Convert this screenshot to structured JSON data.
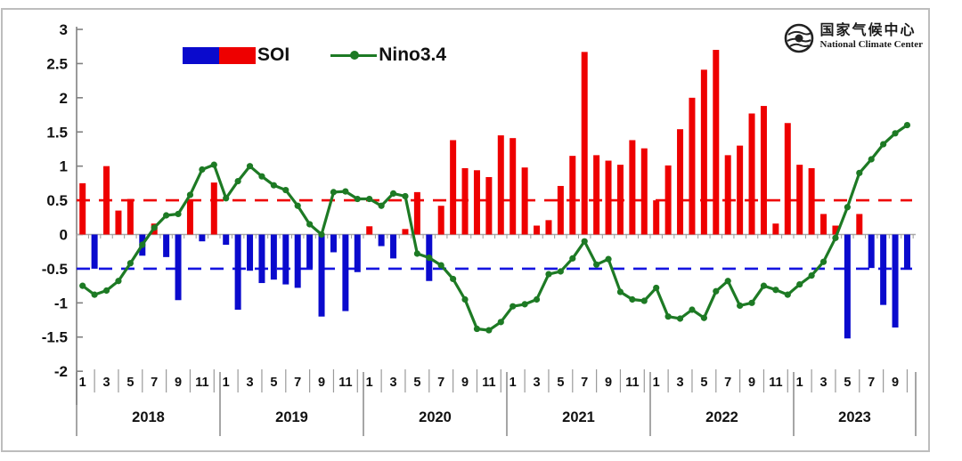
{
  "header": {
    "logo_cn": "国家气候中心",
    "logo_en": "National Climate Center"
  },
  "legend": {
    "soi_label": "SOI",
    "nino_label": "Nino3.4"
  },
  "colors": {
    "soi_positive": "#ee0000",
    "soi_negative": "#0a0acd",
    "nino_line": "#1d7a24",
    "ref_positive": "#ee0000",
    "ref_negative": "#1414e0",
    "zero_line": "#aaaaaa",
    "axis": "#808080",
    "tick": "#9a9a9a",
    "label_text": "#111111"
  },
  "chart_data": {
    "type": "bar",
    "subtype": "bar+line composite, monthly Jan 2018 - Oct 2023",
    "title": "",
    "xlabel": "",
    "ylabel": "",
    "ylim": [
      -2,
      3
    ],
    "y_ticks": [
      "3",
      "2.5",
      "2",
      "1.5",
      "1",
      "0.5",
      "0",
      "-0.5",
      "-1",
      "-1.5",
      "-2"
    ],
    "y_tick_values": [
      3,
      2.5,
      2,
      1.5,
      1,
      0.5,
      0,
      -0.5,
      -1,
      -1.5,
      -2
    ],
    "reference_lines": [
      {
        "value": 0.5,
        "style": "dashed",
        "color_key": "ref_positive"
      },
      {
        "value": -0.5,
        "style": "dashed",
        "color_key": "ref_negative"
      }
    ],
    "grid": false,
    "legend_position": "top-left-inside",
    "years": [
      "2018",
      "2019",
      "2020",
      "2021",
      "2022",
      "2023"
    ],
    "month_tick_labels": [
      "1",
      "3",
      "5",
      "7",
      "9",
      "11"
    ],
    "months_per_year": [
      12,
      12,
      12,
      12,
      12,
      10
    ],
    "series": [
      {
        "name": "SOI",
        "type": "bar",
        "values": [
          0.75,
          -0.5,
          1.0,
          0.35,
          0.52,
          -0.31,
          0.16,
          -0.33,
          -0.96,
          0.51,
          -0.1,
          0.76,
          -0.15,
          -1.1,
          -0.53,
          -0.71,
          -0.66,
          -0.73,
          -0.78,
          -0.49,
          -1.2,
          -0.26,
          -1.12,
          -0.55,
          0.12,
          -0.17,
          -0.35,
          0.08,
          0.62,
          -0.68,
          0.42,
          1.38,
          0.97,
          0.94,
          0.84,
          1.45,
          1.41,
          0.98,
          0.13,
          0.21,
          0.71,
          1.15,
          2.67,
          1.16,
          1.08,
          1.02,
          1.38,
          1.26,
          0.5,
          1.01,
          1.54,
          2.0,
          2.41,
          2.7,
          1.16,
          1.3,
          1.77,
          1.88,
          0.16,
          1.63,
          1.02,
          0.97,
          0.3,
          0.13,
          -1.52,
          0.3,
          -0.49,
          -1.03,
          -1.36,
          -0.51
        ]
      },
      {
        "name": "Nino3.4",
        "type": "line",
        "values": [
          -0.75,
          -0.88,
          -0.82,
          -0.68,
          -0.42,
          -0.15,
          0.1,
          0.28,
          0.3,
          0.58,
          0.95,
          1.02,
          0.53,
          0.78,
          1.0,
          0.85,
          0.72,
          0.65,
          0.42,
          0.15,
          0.0,
          0.62,
          0.63,
          0.52,
          0.52,
          0.42,
          0.6,
          0.56,
          -0.28,
          -0.34,
          -0.45,
          -0.65,
          -0.95,
          -1.38,
          -1.4,
          -1.28,
          -1.05,
          -1.02,
          -0.95,
          -0.58,
          -0.54,
          -0.35,
          -0.1,
          -0.44,
          -0.36,
          -0.84,
          -0.95,
          -0.97,
          -0.78,
          -1.2,
          -1.23,
          -1.1,
          -1.22,
          -0.83,
          -0.68,
          -1.04,
          -1.0,
          -0.75,
          -0.81,
          -0.88,
          -0.73,
          -0.6,
          -0.4,
          -0.05,
          0.4,
          0.9,
          1.1,
          1.32,
          1.48,
          1.6
        ]
      }
    ]
  }
}
